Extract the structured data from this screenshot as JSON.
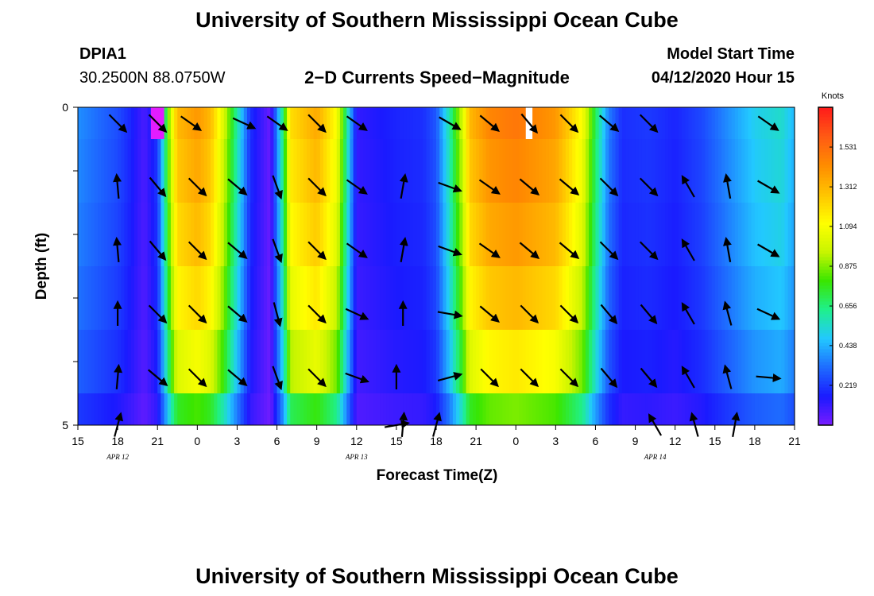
{
  "header": {
    "title": "University of Southern Mississippi Ocean Cube",
    "station": "DPIA1",
    "coords": "30.2500N 88.0750W",
    "subtitle": "2−D Currents Speed−Magnitude",
    "model_start_label": "Model Start Time",
    "model_start_value": "04/12/2020 Hour 15"
  },
  "footer": {
    "title": "University of Southern Mississippi Ocean Cube"
  },
  "chart_data": {
    "type": "heatmap",
    "title": "2−D Currents Speed−Magnitude",
    "xlabel": "Forecast Time(Z)",
    "ylabel": "Depth (ft)",
    "x_range_hours": [
      0,
      54
    ],
    "y_range_ft": [
      0,
      5
    ],
    "x_tick_labels": [
      "15",
      "18",
      "21",
      "0",
      "3",
      "6",
      "9",
      "12",
      "15",
      "18",
      "21",
      "0",
      "3",
      "6",
      "9",
      "12",
      "15",
      "18",
      "21"
    ],
    "date_labels": [
      {
        "text": "APR 12",
        "hour": 3
      },
      {
        "text": "APR 13",
        "hour": 21
      },
      {
        "text": "APR 14",
        "hour": 43.5
      }
    ],
    "y_tick_labels": [
      "0",
      "5"
    ],
    "colorbar": {
      "unit": "Knots",
      "min": 0,
      "max": 1.75,
      "ticks": [
        "0.219",
        "0.438",
        "0.656",
        "0.875",
        "1.094",
        "1.312",
        "1.531"
      ],
      "colors": [
        "#7a1cff",
        "#1a1aff",
        "#1e6bff",
        "#22c8ff",
        "#1ff08c",
        "#39e600",
        "#c8f500",
        "#ffff00",
        "#ffc400",
        "#ff8c00",
        "#ff5a14",
        "#ff1a1a"
      ]
    },
    "speed_profile_knots": [
      [
        0,
        0.38
      ],
      [
        2,
        0.3
      ],
      [
        3,
        0.26
      ],
      [
        4,
        0.18
      ],
      [
        5,
        0.08
      ],
      [
        6,
        0.22
      ],
      [
        6.5,
        0.6
      ],
      [
        7,
        1.0
      ],
      [
        7.5,
        1.3
      ],
      [
        9,
        1.4
      ],
      [
        10,
        1.3
      ],
      [
        11,
        1.0
      ],
      [
        12,
        0.6
      ],
      [
        13,
        0.2
      ],
      [
        14.5,
        0.03
      ],
      [
        15.5,
        0.7
      ],
      [
        16,
        1.2
      ],
      [
        18,
        1.35
      ],
      [
        19.5,
        1.1
      ],
      [
        20,
        0.8
      ],
      [
        21,
        0.12
      ],
      [
        22.5,
        0.15
      ],
      [
        24,
        0.18
      ],
      [
        26,
        0.2
      ],
      [
        27,
        0.28
      ],
      [
        28,
        0.6
      ],
      [
        29,
        1.0
      ],
      [
        29.5,
        1.3
      ],
      [
        31,
        1.45
      ],
      [
        33,
        1.5
      ],
      [
        36,
        1.4
      ],
      [
        38,
        1.1
      ],
      [
        39,
        0.7
      ],
      [
        40,
        0.35
      ],
      [
        41,
        0.2
      ],
      [
        43,
        0.22
      ],
      [
        45,
        0.18
      ],
      [
        47,
        0.25
      ],
      [
        49,
        0.38
      ],
      [
        51,
        0.5
      ],
      [
        53,
        0.55
      ],
      [
        54,
        0.45
      ]
    ],
    "depth_factor": [
      1.0,
      0.97,
      0.93,
      0.87,
      0.78,
      0.58
    ],
    "hot_spot": {
      "hour": 6,
      "depth_row": 0,
      "speed": 0.02
    },
    "missing_cell": {
      "hour": 34,
      "depth_row": 0
    },
    "vectors": [
      {
        "hour": 3,
        "depth": 0.25,
        "angle": 135
      },
      {
        "hour": 6,
        "depth": 0.25,
        "angle": 135
      },
      {
        "hour": 8.5,
        "depth": 0.25,
        "angle": 125
      },
      {
        "hour": 12.5,
        "depth": 0.25,
        "angle": 115
      },
      {
        "hour": 15,
        "depth": 0.25,
        "angle": 125
      },
      {
        "hour": 18,
        "depth": 0.25,
        "angle": 135
      },
      {
        "hour": 21,
        "depth": 0.25,
        "angle": 125
      },
      {
        "hour": 28,
        "depth": 0.25,
        "angle": 120
      },
      {
        "hour": 31,
        "depth": 0.25,
        "angle": 130
      },
      {
        "hour": 34,
        "depth": 0.25,
        "angle": 140
      },
      {
        "hour": 37,
        "depth": 0.25,
        "angle": 135
      },
      {
        "hour": 40,
        "depth": 0.25,
        "angle": 130
      },
      {
        "hour": 43,
        "depth": 0.25,
        "angle": 135
      },
      {
        "hour": 52,
        "depth": 0.25,
        "angle": 125
      },
      {
        "hour": 3,
        "depth": 1.25,
        "angle": 355
      },
      {
        "hour": 6,
        "depth": 1.25,
        "angle": 140
      },
      {
        "hour": 9,
        "depth": 1.25,
        "angle": 135
      },
      {
        "hour": 12,
        "depth": 1.25,
        "angle": 130
      },
      {
        "hour": 15,
        "depth": 1.25,
        "angle": 160
      },
      {
        "hour": 18,
        "depth": 1.25,
        "angle": 135
      },
      {
        "hour": 21,
        "depth": 1.25,
        "angle": 125
      },
      {
        "hour": 24.5,
        "depth": 1.25,
        "angle": 10
      },
      {
        "hour": 28,
        "depth": 1.25,
        "angle": 110
      },
      {
        "hour": 31,
        "depth": 1.25,
        "angle": 125
      },
      {
        "hour": 34,
        "depth": 1.25,
        "angle": 130
      },
      {
        "hour": 37,
        "depth": 1.25,
        "angle": 130
      },
      {
        "hour": 40,
        "depth": 1.25,
        "angle": 135
      },
      {
        "hour": 43,
        "depth": 1.25,
        "angle": 135
      },
      {
        "hour": 46,
        "depth": 1.25,
        "angle": 330
      },
      {
        "hour": 49,
        "depth": 1.25,
        "angle": 350
      },
      {
        "hour": 52,
        "depth": 1.25,
        "angle": 120
      },
      {
        "hour": 3,
        "depth": 2.25,
        "angle": 355
      },
      {
        "hour": 6,
        "depth": 2.25,
        "angle": 140
      },
      {
        "hour": 9,
        "depth": 2.25,
        "angle": 135
      },
      {
        "hour": 12,
        "depth": 2.25,
        "angle": 130
      },
      {
        "hour": 15,
        "depth": 2.25,
        "angle": 160
      },
      {
        "hour": 18,
        "depth": 2.25,
        "angle": 135
      },
      {
        "hour": 21,
        "depth": 2.25,
        "angle": 125
      },
      {
        "hour": 24.5,
        "depth": 2.25,
        "angle": 10
      },
      {
        "hour": 28,
        "depth": 2.25,
        "angle": 110
      },
      {
        "hour": 31,
        "depth": 2.25,
        "angle": 125
      },
      {
        "hour": 34,
        "depth": 2.25,
        "angle": 130
      },
      {
        "hour": 37,
        "depth": 2.25,
        "angle": 130
      },
      {
        "hour": 40,
        "depth": 2.25,
        "angle": 135
      },
      {
        "hour": 43,
        "depth": 2.25,
        "angle": 135
      },
      {
        "hour": 46,
        "depth": 2.25,
        "angle": 330
      },
      {
        "hour": 49,
        "depth": 2.25,
        "angle": 350
      },
      {
        "hour": 52,
        "depth": 2.25,
        "angle": 120
      },
      {
        "hour": 3,
        "depth": 3.25,
        "angle": 0
      },
      {
        "hour": 6,
        "depth": 3.25,
        "angle": 135
      },
      {
        "hour": 9,
        "depth": 3.25,
        "angle": 135
      },
      {
        "hour": 12,
        "depth": 3.25,
        "angle": 130
      },
      {
        "hour": 15,
        "depth": 3.25,
        "angle": 165
      },
      {
        "hour": 18,
        "depth": 3.25,
        "angle": 135
      },
      {
        "hour": 21,
        "depth": 3.25,
        "angle": 115
      },
      {
        "hour": 24.5,
        "depth": 3.25,
        "angle": 0
      },
      {
        "hour": 28,
        "depth": 3.25,
        "angle": 100
      },
      {
        "hour": 31,
        "depth": 3.25,
        "angle": 130
      },
      {
        "hour": 34,
        "depth": 3.25,
        "angle": 135
      },
      {
        "hour": 37,
        "depth": 3.25,
        "angle": 135
      },
      {
        "hour": 40,
        "depth": 3.25,
        "angle": 140
      },
      {
        "hour": 43,
        "depth": 3.25,
        "angle": 140
      },
      {
        "hour": 46,
        "depth": 3.25,
        "angle": 330
      },
      {
        "hour": 49,
        "depth": 3.25,
        "angle": 345
      },
      {
        "hour": 52,
        "depth": 3.25,
        "angle": 115
      },
      {
        "hour": 3,
        "depth": 4.25,
        "angle": 5
      },
      {
        "hour": 6,
        "depth": 4.25,
        "angle": 130
      },
      {
        "hour": 9,
        "depth": 4.25,
        "angle": 135
      },
      {
        "hour": 12,
        "depth": 4.25,
        "angle": 130
      },
      {
        "hour": 15,
        "depth": 4.25,
        "angle": 160
      },
      {
        "hour": 18,
        "depth": 4.25,
        "angle": 135
      },
      {
        "hour": 21,
        "depth": 4.25,
        "angle": 110
      },
      {
        "hour": 24,
        "depth": 4.25,
        "angle": 0
      },
      {
        "hour": 28,
        "depth": 4.25,
        "angle": 75
      },
      {
        "hour": 31,
        "depth": 4.25,
        "angle": 135
      },
      {
        "hour": 34,
        "depth": 4.25,
        "angle": 135
      },
      {
        "hour": 37,
        "depth": 4.25,
        "angle": 135
      },
      {
        "hour": 40,
        "depth": 4.25,
        "angle": 140
      },
      {
        "hour": 43,
        "depth": 4.25,
        "angle": 140
      },
      {
        "hour": 46,
        "depth": 4.25,
        "angle": 330
      },
      {
        "hour": 49,
        "depth": 4.25,
        "angle": 345
      },
      {
        "hour": 52,
        "depth": 4.25,
        "angle": 95
      },
      {
        "hour": 3,
        "depth": 5.0,
        "angle": 15
      },
      {
        "hour": 24,
        "depth": 5.0,
        "angle": 80
      },
      {
        "hour": 24.5,
        "depth": 5.0,
        "angle": 5
      },
      {
        "hour": 27,
        "depth": 5.0,
        "angle": 15
      },
      {
        "hour": 43.5,
        "depth": 5.0,
        "angle": 330
      },
      {
        "hour": 46.5,
        "depth": 5.0,
        "angle": 345
      },
      {
        "hour": 49.5,
        "depth": 5.0,
        "angle": 10
      }
    ]
  }
}
